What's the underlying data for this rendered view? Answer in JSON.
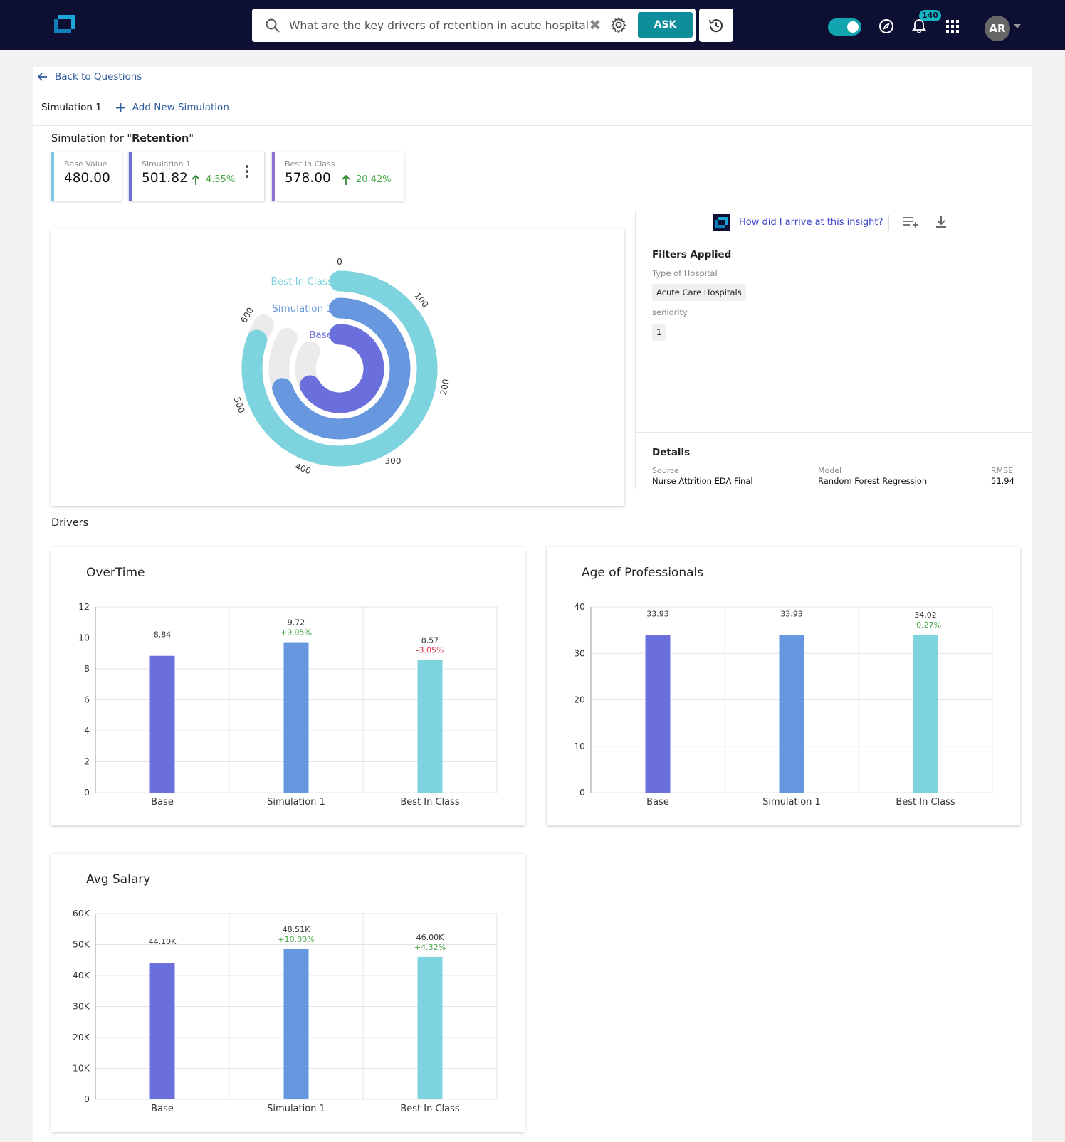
{
  "header": {
    "search_query": "What are the key drivers of retention in acute hospitals",
    "ask_label": "ASK",
    "notification_count": "140",
    "user_initials": "AR"
  },
  "nav": {
    "back_label": "Back to Questions",
    "tabs": [
      "Simulation 1"
    ],
    "add_simulation_label": "Add New Simulation"
  },
  "simulation": {
    "title_prefix": "Simulation for \"",
    "target": "Retention",
    "title_suffix": "\"",
    "kpis": [
      {
        "label": "Base Value",
        "value": "480.00",
        "delta": "",
        "color": "#7cc7e8"
      },
      {
        "label": "Simulation 1",
        "value": "501.82",
        "delta": "4.55%",
        "color": "#6d6fd8"
      },
      {
        "label": "Best In Class",
        "value": "578.00",
        "delta": "20.42%",
        "color": "#8a72d6"
      }
    ]
  },
  "insight": {
    "link_label": "How did I arrive at this insight?"
  },
  "filters": {
    "heading": "Filters Applied",
    "items": [
      {
        "label": "Type of Hospital",
        "value": "Acute Care Hospitals"
      },
      {
        "label": "seniority",
        "value": "1"
      }
    ]
  },
  "details": {
    "heading": "Details",
    "source_label": "Source",
    "source_value": "Nurse Attrition EDA Final",
    "model_label": "Model",
    "model_value": "Random Forest Regression",
    "rmse_label": "RMSE",
    "rmse_value": "51.94"
  },
  "drivers_heading": "Drivers",
  "colors": {
    "base": "#6b6fdc",
    "simulation": "#6797de",
    "best": "#7dd3de",
    "up": "#4aa84a",
    "down": "#e0354a",
    "track": "#ebebeb"
  },
  "chart_data": [
    {
      "type": "radial-bar",
      "categories": [
        "Best In Class",
        "Simulation 1",
        "Base"
      ],
      "values": [
        578.0,
        501.82,
        480.0
      ],
      "axis_ticks": [
        "0",
        "100",
        "200",
        "300",
        "400",
        "500",
        "600"
      ],
      "max": 600
    },
    {
      "type": "bar",
      "title": "OverTime",
      "categories": [
        "Base",
        "Simulation 1",
        "Best In Class"
      ],
      "values": [
        8.84,
        9.72,
        8.57
      ],
      "value_labels": [
        "8.84",
        "9.72",
        "8.57"
      ],
      "deltas": [
        "",
        "+9.95%",
        "-3.05%"
      ],
      "yticks": [
        "0",
        "2",
        "4",
        "6",
        "8",
        "10",
        "12"
      ],
      "ylim": [
        0,
        12
      ]
    },
    {
      "type": "bar",
      "title": "Age of Professionals",
      "categories": [
        "Base",
        "Simulation 1",
        "Best In Class"
      ],
      "values": [
        33.93,
        33.93,
        34.02
      ],
      "value_labels": [
        "33.93",
        "33.93",
        "34.02"
      ],
      "deltas": [
        "",
        "",
        "+0.27%"
      ],
      "yticks": [
        "0",
        "10",
        "20",
        "30",
        "40"
      ],
      "ylim": [
        0,
        40
      ]
    },
    {
      "type": "bar",
      "title": "Avg Salary",
      "categories": [
        "Base",
        "Simulation 1",
        "Best In Class"
      ],
      "values": [
        44100,
        48510,
        46000
      ],
      "value_labels": [
        "44.10K",
        "48.51K",
        "46.00K"
      ],
      "deltas": [
        "",
        "+10.00%",
        "+4.32%"
      ],
      "yticks": [
        "0",
        "10K",
        "20K",
        "30K",
        "40K",
        "50K",
        "60K"
      ],
      "ylim": [
        0,
        60000
      ]
    }
  ]
}
